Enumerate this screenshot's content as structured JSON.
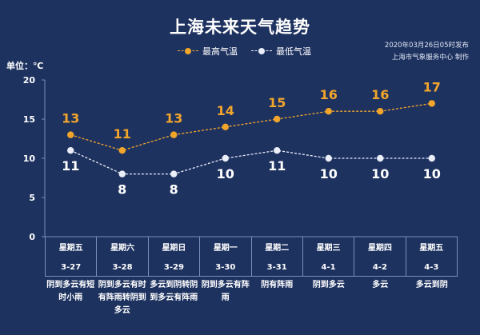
{
  "title": "上海未来天气趋势",
  "publish": {
    "time": "2020年03月26日05时发布",
    "source": "上海市气象服务中心   制作"
  },
  "unit_label": "单位：℃",
  "colors": {
    "background": "#1e3260",
    "high": "#f1a52b",
    "low": "#e9eef8",
    "axis": "#7a8fb7"
  },
  "chart_data": {
    "type": "line",
    "categories": [
      "星期五 3-27",
      "星期六 3-28",
      "星期日 3-29",
      "星期一 3-30",
      "星期二 3-31",
      "星期三 4-1",
      "星期四 4-2",
      "星期五 4-3"
    ],
    "series": [
      {
        "name": "最高气温",
        "values": [
          13,
          11,
          13,
          14,
          15,
          16,
          16,
          17
        ],
        "color": "#f1a52b",
        "style": "dashed"
      },
      {
        "name": "最低气温",
        "values": [
          11,
          8,
          8,
          10,
          11,
          10,
          10,
          10
        ],
        "color": "#e9eef8",
        "style": "dashed"
      }
    ],
    "ylim": [
      0,
      20
    ],
    "yticks": [
      0,
      5,
      10,
      15,
      20
    ],
    "ylabel": "单位：℃",
    "legend_position": "top"
  },
  "days": [
    {
      "weekday": "星期五",
      "date": "3-27",
      "weather": "阴到多云有短时小雨"
    },
    {
      "weekday": "星期六",
      "date": "3-28",
      "weather": "阴到多云有时有阵雨转阴到多云"
    },
    {
      "weekday": "星期日",
      "date": "3-29",
      "weather": "多云到阴转阴到多云有阵雨"
    },
    {
      "weekday": "星期一",
      "date": "3-30",
      "weather": "阴到多云有阵雨"
    },
    {
      "weekday": "星期二",
      "date": "3-31",
      "weather": "阴有阵雨"
    },
    {
      "weekday": "星期三",
      "date": "4-1",
      "weather": "阴到多云"
    },
    {
      "weekday": "星期四",
      "date": "4-2",
      "weather": "多云"
    },
    {
      "weekday": "星期五",
      "date": "4-3",
      "weather": "多云到阴"
    }
  ]
}
